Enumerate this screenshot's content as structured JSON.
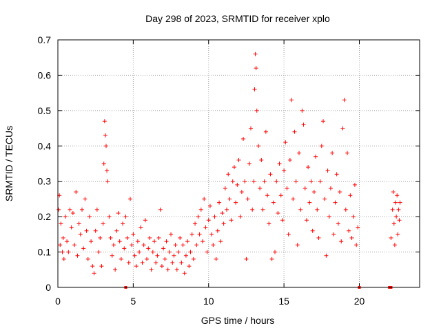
{
  "chart_data": {
    "type": "scatter",
    "title": "Day 298 of 2023, SRMTID for receiver xplo",
    "xlabel": "GPS time / hours",
    "ylabel": "SRMTID / TECUs",
    "xlim": [
      0,
      24
    ],
    "ylim": [
      0,
      0.7
    ],
    "xticks": [
      0,
      5,
      10,
      15,
      20
    ],
    "xtick_labels": [
      "0",
      "5",
      "10",
      "15",
      "20"
    ],
    "yticks": [
      0,
      0.1,
      0.2,
      0.3,
      0.4,
      0.5,
      0.6,
      0.7
    ],
    "ytick_labels": [
      "0",
      "0.1",
      "0.2",
      "0.3",
      "0.4",
      "0.5",
      "0.6",
      "0.7"
    ],
    "grid": true,
    "marker": "+",
    "color": "#ff0000",
    "series": [
      {
        "name": "SRMTID",
        "points": [
          [
            0.05,
            0.22
          ],
          [
            0.1,
            0.26
          ],
          [
            0.15,
            0.12
          ],
          [
            0.2,
            0.18
          ],
          [
            0.3,
            0.1
          ],
          [
            0.35,
            0.14
          ],
          [
            0.4,
            0.08
          ],
          [
            0.5,
            0.2
          ],
          [
            0.6,
            0.13
          ],
          [
            0.7,
            0.1
          ],
          [
            0.8,
            0.22
          ],
          [
            0.9,
            0.17
          ],
          [
            1.0,
            0.21
          ],
          [
            1.1,
            0.12
          ],
          [
            1.2,
            0.27
          ],
          [
            1.3,
            0.09
          ],
          [
            1.4,
            0.18
          ],
          [
            1.5,
            0.15
          ],
          [
            1.6,
            0.22
          ],
          [
            1.7,
            0.11
          ],
          [
            1.8,
            0.25
          ],
          [
            1.9,
            0.16
          ],
          [
            2.0,
            0.08
          ],
          [
            2.1,
            0.2
          ],
          [
            2.2,
            0.13
          ],
          [
            2.3,
            0.06
          ],
          [
            2.4,
            0.04
          ],
          [
            2.5,
            0.16
          ],
          [
            2.6,
            0.22
          ],
          [
            2.7,
            0.1
          ],
          [
            2.8,
            0.14
          ],
          [
            2.9,
            0.06
          ],
          [
            3.0,
            0.18
          ],
          [
            3.05,
            0.35
          ],
          [
            3.1,
            0.47
          ],
          [
            3.15,
            0.43
          ],
          [
            3.2,
            0.4
          ],
          [
            3.25,
            0.33
          ],
          [
            3.3,
            0.3
          ],
          [
            3.4,
            0.2
          ],
          [
            3.5,
            0.14
          ],
          [
            3.6,
            0.09
          ],
          [
            3.7,
            0.12
          ],
          [
            3.8,
            0.05
          ],
          [
            3.9,
            0.16
          ],
          [
            4.0,
            0.21
          ],
          [
            4.1,
            0.13
          ],
          [
            4.2,
            0.08
          ],
          [
            4.3,
            0.18
          ],
          [
            4.4,
            0.11
          ],
          [
            4.5,
            0.2
          ],
          [
            4.6,
            0.14
          ],
          [
            4.7,
            0.07
          ],
          [
            4.8,
            0.25
          ],
          [
            4.9,
            0.12
          ],
          [
            5.0,
            0.15
          ],
          [
            5.1,
            0.09
          ],
          [
            5.2,
            0.06
          ],
          [
            5.3,
            0.13
          ],
          [
            5.4,
            0.1
          ],
          [
            5.5,
            0.17
          ],
          [
            5.6,
            0.07
          ],
          [
            5.7,
            0.12
          ],
          [
            5.8,
            0.19
          ],
          [
            5.9,
            0.08
          ],
          [
            6.0,
            0.11
          ],
          [
            6.1,
            0.14
          ],
          [
            6.2,
            0.05
          ],
          [
            6.3,
            0.1
          ],
          [
            6.4,
            0.13
          ],
          [
            6.5,
            0.07
          ],
          [
            6.6,
            0.09
          ],
          [
            6.7,
            0.14
          ],
          [
            6.8,
            0.22
          ],
          [
            6.9,
            0.06
          ],
          [
            7.0,
            0.11
          ],
          [
            7.1,
            0.08
          ],
          [
            7.2,
            0.13
          ],
          [
            7.3,
            0.05
          ],
          [
            7.4,
            0.1
          ],
          [
            7.5,
            0.15
          ],
          [
            7.6,
            0.07
          ],
          [
            7.7,
            0.09
          ],
          [
            7.8,
            0.12
          ],
          [
            7.9,
            0.05
          ],
          [
            8.0,
            0.1
          ],
          [
            8.1,
            0.14
          ],
          [
            8.2,
            0.07
          ],
          [
            8.3,
            0.12
          ],
          [
            8.4,
            0.04
          ],
          [
            8.5,
            0.09
          ],
          [
            8.6,
            0.13
          ],
          [
            8.7,
            0.06
          ],
          [
            8.8,
            0.1
          ],
          [
            8.9,
            0.15
          ],
          [
            9.0,
            0.08
          ],
          [
            9.1,
            0.18
          ],
          [
            9.2,
            0.12
          ],
          [
            9.3,
            0.2
          ],
          [
            9.4,
            0.15
          ],
          [
            9.5,
            0.22
          ],
          [
            9.6,
            0.13
          ],
          [
            9.7,
            0.25
          ],
          [
            9.8,
            0.17
          ],
          [
            9.9,
            0.1
          ],
          [
            10.0,
            0.19
          ],
          [
            10.1,
            0.23
          ],
          [
            10.2,
            0.15
          ],
          [
            10.3,
            0.12
          ],
          [
            10.4,
            0.2
          ],
          [
            10.5,
            0.08
          ],
          [
            10.6,
            0.16
          ],
          [
            10.7,
            0.24
          ],
          [
            10.8,
            0.13
          ],
          [
            10.9,
            0.21
          ],
          [
            11.0,
            0.18
          ],
          [
            11.1,
            0.28
          ],
          [
            11.2,
            0.22
          ],
          [
            11.3,
            0.32
          ],
          [
            11.4,
            0.25
          ],
          [
            11.5,
            0.19
          ],
          [
            11.6,
            0.3
          ],
          [
            11.7,
            0.34
          ],
          [
            11.8,
            0.24
          ],
          [
            11.9,
            0.29
          ],
          [
            12.0,
            0.36
          ],
          [
            12.1,
            0.2
          ],
          [
            12.2,
            0.27
          ],
          [
            12.3,
            0.42
          ],
          [
            12.4,
            0.3
          ],
          [
            12.5,
            0.08
          ],
          [
            12.6,
            0.25
          ],
          [
            12.7,
            0.35
          ],
          [
            12.8,
            0.45
          ],
          [
            12.9,
            0.22
          ],
          [
            13.0,
            0.3
          ],
          [
            13.05,
            0.56
          ],
          [
            13.1,
            0.66
          ],
          [
            13.15,
            0.62
          ],
          [
            13.2,
            0.5
          ],
          [
            13.3,
            0.4
          ],
          [
            13.4,
            0.28
          ],
          [
            13.5,
            0.36
          ],
          [
            13.6,
            0.22
          ],
          [
            13.7,
            0.3
          ],
          [
            13.8,
            0.44
          ],
          [
            13.9,
            0.26
          ],
          [
            14.0,
            0.18
          ],
          [
            14.1,
            0.32
          ],
          [
            14.2,
            0.08
          ],
          [
            14.3,
            0.24
          ],
          [
            14.4,
            0.1
          ],
          [
            14.5,
            0.3
          ],
          [
            14.6,
            0.21
          ],
          [
            14.7,
            0.35
          ],
          [
            14.8,
            0.26
          ],
          [
            14.9,
            0.19
          ],
          [
            15.0,
            0.33
          ],
          [
            15.1,
            0.41
          ],
          [
            15.2,
            0.28
          ],
          [
            15.3,
            0.15
          ],
          [
            15.4,
            0.36
          ],
          [
            15.5,
            0.53
          ],
          [
            15.6,
            0.25
          ],
          [
            15.7,
            0.44
          ],
          [
            15.8,
            0.3
          ],
          [
            15.9,
            0.12
          ],
          [
            16.0,
            0.38
          ],
          [
            16.1,
            0.22
          ],
          [
            16.2,
            0.5
          ],
          [
            16.3,
            0.46
          ],
          [
            16.4,
            0.28
          ],
          [
            16.5,
            0.19
          ],
          [
            16.6,
            0.34
          ],
          [
            16.7,
            0.24
          ],
          [
            16.8,
            0.3
          ],
          [
            16.9,
            0.16
          ],
          [
            17.0,
            0.27
          ],
          [
            17.1,
            0.37
          ],
          [
            17.2,
            0.22
          ],
          [
            17.3,
            0.14
          ],
          [
            17.4,
            0.3
          ],
          [
            17.5,
            0.4
          ],
          [
            17.6,
            0.47
          ],
          [
            17.7,
            0.25
          ],
          [
            17.8,
            0.09
          ],
          [
            17.9,
            0.33
          ],
          [
            18.0,
            0.2
          ],
          [
            18.1,
            0.28
          ],
          [
            18.2,
            0.38
          ],
          [
            18.3,
            0.15
          ],
          [
            18.4,
            0.24
          ],
          [
            18.5,
            0.32
          ],
          [
            18.6,
            0.18
          ],
          [
            18.7,
            0.27
          ],
          [
            18.8,
            0.13
          ],
          [
            18.9,
            0.45
          ],
          [
            19.0,
            0.53
          ],
          [
            19.1,
            0.22
          ],
          [
            19.2,
            0.38
          ],
          [
            19.3,
            0.16
          ],
          [
            19.4,
            0.26
          ],
          [
            19.5,
            0.14
          ],
          [
            19.6,
            0.2
          ],
          [
            19.7,
            0.29
          ],
          [
            19.8,
            0.12
          ],
          [
            19.9,
            0.17
          ],
          [
            22.1,
            0.14
          ],
          [
            22.2,
            0.22
          ],
          [
            22.25,
            0.27
          ],
          [
            22.3,
            0.18
          ],
          [
            22.35,
            0.12
          ],
          [
            22.4,
            0.24
          ],
          [
            22.45,
            0.2
          ],
          [
            22.5,
            0.26
          ],
          [
            22.55,
            0.15
          ],
          [
            22.6,
            0.22
          ],
          [
            22.65,
            0.19
          ],
          [
            22.7,
            0.24
          ]
        ]
      }
    ],
    "zero_markers": [
      4.5,
      20.0,
      22.0,
      22.1
    ]
  }
}
